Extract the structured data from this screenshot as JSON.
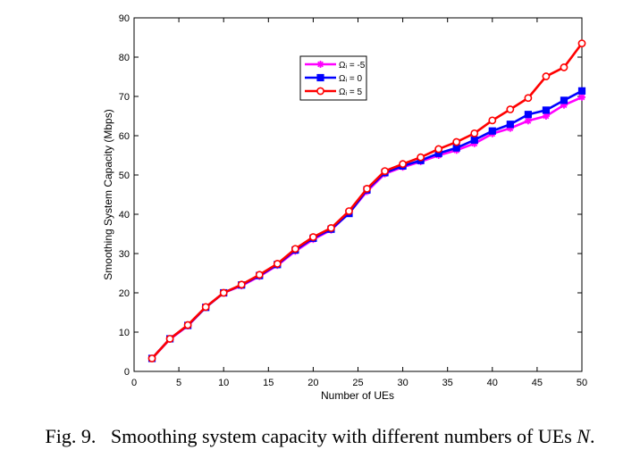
{
  "figure": {
    "caption_label": "Fig. 9.",
    "caption_text": "Smoothing system capacity with different numbers of UEs",
    "caption_variable": "N",
    "caption_end": "."
  },
  "chart_data": {
    "type": "line",
    "xlabel": "Number of UEs",
    "ylabel": "Smoothing System Capacity (Mbps)",
    "xlim": [
      0,
      50
    ],
    "ylim": [
      0,
      90
    ],
    "xticks": [
      0,
      5,
      10,
      15,
      20,
      25,
      30,
      35,
      40,
      45,
      50
    ],
    "yticks": [
      0,
      10,
      20,
      30,
      40,
      50,
      60,
      70,
      80,
      90
    ],
    "grid": false,
    "legend_position": "upper-middle",
    "x": [
      2,
      4,
      6,
      8,
      10,
      12,
      14,
      16,
      18,
      20,
      22,
      24,
      26,
      28,
      30,
      32,
      34,
      36,
      38,
      40,
      42,
      44,
      46,
      48,
      50
    ],
    "series": [
      {
        "name": "Ωᵢ = -5",
        "color": "#ff00ff",
        "marker": "asterisk",
        "values": [
          3.3,
          8.2,
          11.6,
          16.3,
          20.0,
          21.8,
          24.2,
          27.0,
          30.6,
          33.6,
          36.0,
          40.3,
          45.8,
          50.3,
          52.0,
          53.4,
          55.0,
          56.3,
          58.0,
          60.5,
          61.9,
          63.8,
          65.0,
          67.8,
          69.8
        ]
      },
      {
        "name": "Ωᵢ = 0",
        "color": "#0000ff",
        "marker": "square",
        "values": [
          3.3,
          8.3,
          11.7,
          16.3,
          20.0,
          22.0,
          24.4,
          27.2,
          30.9,
          33.9,
          36.2,
          40.2,
          46.2,
          50.6,
          52.3,
          53.7,
          55.5,
          56.9,
          58.9,
          61.2,
          62.9,
          65.4,
          66.5,
          69.0,
          71.4
        ]
      },
      {
        "name": "Ωᵢ = 5",
        "color": "#ff0000",
        "marker": "circle",
        "values": [
          3.3,
          8.3,
          11.8,
          16.4,
          20.0,
          22.1,
          24.6,
          27.4,
          31.2,
          34.2,
          36.5,
          40.8,
          46.5,
          51.0,
          52.8,
          54.5,
          56.6,
          58.4,
          60.6,
          63.9,
          66.7,
          69.6,
          75.1,
          77.4,
          83.5
        ]
      }
    ]
  }
}
